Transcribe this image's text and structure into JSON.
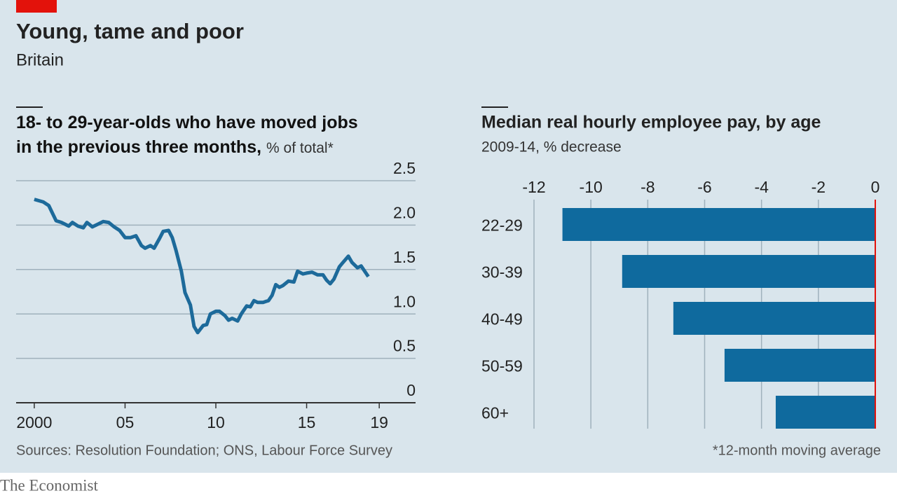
{
  "header": {
    "title": "Young, tame and poor",
    "subtitle": "Britain"
  },
  "chart_data": [
    {
      "type": "line",
      "title": "18- to 29-year-olds who have moved jobs in the previous three months,",
      "unit": "% of total*",
      "x": [
        2000.0,
        2000.5,
        2000.8,
        2001.2,
        2001.5,
        2001.9,
        2002.1,
        2002.4,
        2002.7,
        2002.9,
        2003.2,
        2003.5,
        2003.8,
        2004.1,
        2004.4,
        2004.7,
        2005.0,
        2005.3,
        2005.6,
        2005.9,
        2006.1,
        2006.4,
        2006.6,
        2006.9,
        2007.1,
        2007.4,
        2007.6,
        2007.8,
        2008.1,
        2008.3,
        2008.6,
        2008.8,
        2009.0,
        2009.3,
        2009.5,
        2009.7,
        2010.0,
        2010.2,
        2010.5,
        2010.7,
        2010.9,
        2011.2,
        2011.4,
        2011.7,
        2011.9,
        2012.1,
        2012.3,
        2012.6,
        2012.9,
        2013.1,
        2013.3,
        2013.5,
        2013.7,
        2014.0,
        2014.3,
        2014.5,
        2014.8,
        2015.0,
        2015.3,
        2015.6,
        2015.9,
        2016.1,
        2016.3,
        2016.5,
        2016.8,
        2017.0,
        2017.3,
        2017.5,
        2017.8,
        2018.0,
        2018.4
      ],
      "values": [
        2.29,
        2.26,
        2.22,
        2.05,
        2.03,
        1.99,
        2.03,
        1.99,
        1.97,
        2.03,
        1.98,
        2.01,
        2.04,
        2.03,
        1.98,
        1.94,
        1.86,
        1.86,
        1.88,
        1.77,
        1.74,
        1.77,
        1.74,
        1.85,
        1.93,
        1.94,
        1.86,
        1.72,
        1.48,
        1.24,
        1.1,
        0.86,
        0.79,
        0.87,
        0.88,
        1.0,
        1.03,
        1.03,
        0.98,
        0.93,
        0.95,
        0.92,
        1.0,
        1.09,
        1.08,
        1.15,
        1.13,
        1.13,
        1.15,
        1.21,
        1.33,
        1.3,
        1.32,
        1.37,
        1.36,
        1.48,
        1.45,
        1.46,
        1.47,
        1.44,
        1.44,
        1.38,
        1.34,
        1.39,
        1.53,
        1.58,
        1.65,
        1.58,
        1.52,
        1.54,
        1.42
      ],
      "color": "#1d6a9a",
      "xlim": [
        1999,
        2021
      ],
      "xticks": [
        2000,
        {
          "value": 2005,
          "label": "05"
        },
        {
          "value": 2010,
          "label": "10"
        },
        {
          "value": 2015,
          "label": "15"
        },
        {
          "value": 2019,
          "label": "19"
        }
      ],
      "ylim": [
        0,
        2.5
      ],
      "yticks": [
        0,
        0.5,
        {
          "value": 1,
          "label": "1.0"
        },
        1.5,
        {
          "value": 2,
          "label": "2.0"
        },
        2.5
      ],
      "grid": true
    },
    {
      "type": "hbar",
      "title": "Median real hourly employee pay, by age",
      "subtitle": "2009-14, % decrease",
      "categories": [
        "22-29",
        "30-39",
        "40-49",
        "50-59",
        "60+"
      ],
      "values": [
        -11.0,
        -8.9,
        -7.1,
        -5.3,
        -3.5
      ],
      "color": "#0f6a9e",
      "xlim": [
        -12,
        0
      ],
      "xticks": [
        -12,
        -10,
        -8,
        -6,
        -4,
        -2,
        0
      ],
      "grid": true,
      "zero_line_color": "#e3120b"
    }
  ],
  "footer": {
    "source": "Sources: Resolution Foundation; ONS, Labour Force Survey",
    "note": "*12-month moving average",
    "brand": "The Economist"
  }
}
